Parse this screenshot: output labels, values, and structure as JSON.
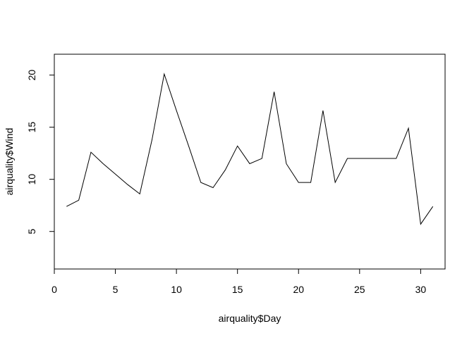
{
  "chart_data": {
    "type": "line",
    "xlabel": "airquality$Day",
    "ylabel": "airquality$Wind",
    "xlim": [
      0,
      32
    ],
    "ylim": [
      1.4,
      22.0
    ],
    "x_ticks": [
      0,
      5,
      10,
      15,
      20,
      25,
      30
    ],
    "y_ticks": [
      5,
      10,
      15,
      20
    ],
    "grid": false,
    "line_color": "#000000",
    "x": [
      1,
      2,
      3,
      4,
      5,
      6,
      7,
      8,
      9,
      10,
      11,
      12,
      13,
      14,
      15,
      16,
      17,
      18,
      19,
      20,
      21,
      22,
      23,
      24,
      25,
      26,
      27,
      28,
      29,
      30,
      31
    ],
    "y": [
      7.4,
      8.0,
      12.6,
      11.5,
      10.5,
      9.5,
      8.6,
      13.8,
      20.1,
      16.6,
      13.2,
      9.7,
      9.2,
      10.9,
      13.2,
      11.5,
      12.0,
      18.4,
      11.5,
      9.7,
      9.7,
      16.6,
      9.7,
      12.0,
      12.0,
      12.0,
      12.0,
      12.0,
      14.9,
      5.7,
      7.4
    ]
  }
}
